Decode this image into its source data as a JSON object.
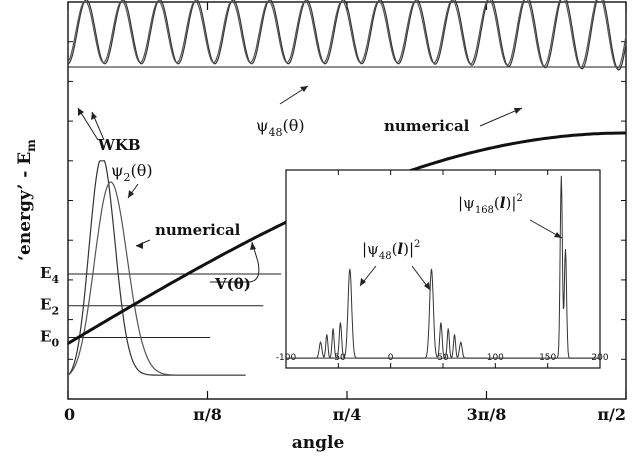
{
  "chart_data": {
    "type": "line",
    "title": "",
    "xlabel": "angle",
    "ylabel": "‘energy’ - E",
    "ylabel_subscript": "m",
    "x_tick_labels": [
      "0",
      "π/8",
      "π/4",
      "3π/8",
      "π/2"
    ],
    "x_tick_values": [
      0,
      0.3927,
      0.7854,
      1.1781,
      1.5708
    ],
    "xlim": [
      0,
      1.5708
    ],
    "energy_levels": [
      {
        "label": "E",
        "sub": "4",
        "level": 0.315
      },
      {
        "label": "E",
        "sub": "2",
        "level": 0.235
      },
      {
        "label": "E",
        "sub": "0",
        "level": 0.155
      }
    ],
    "annotations": [
      {
        "id": "wkb",
        "text": "WKB"
      },
      {
        "id": "psi48",
        "main": "ψ",
        "sub": "48",
        "tail": "(θ)"
      },
      {
        "id": "numerical_top",
        "text": "numerical"
      },
      {
        "id": "psi2",
        "main": "ψ",
        "sub": "2",
        "tail": "(θ)"
      },
      {
        "id": "numerical_mid",
        "text": "numerical"
      },
      {
        "id": "potential",
        "text": "V(θ)"
      }
    ],
    "inset": {
      "type": "line",
      "xlim": [
        -100,
        200
      ],
      "x_tick_labels": [
        "-100",
        "-50",
        "0",
        "50",
        "100",
        "150",
        "200"
      ],
      "x_tick_values": [
        -100,
        -50,
        0,
        50,
        100,
        150,
        200
      ],
      "annotations": [
        {
          "id": "psi48l",
          "pre": "|ψ",
          "sub": "48",
          "mid": "(",
          "italic": "l",
          "post": ")|",
          "sup": "2"
        },
        {
          "id": "psi168l",
          "pre": "|ψ",
          "sub": "168",
          "mid": "(",
          "italic": "l",
          "post": ")|",
          "sup": "2"
        }
      ]
    }
  }
}
